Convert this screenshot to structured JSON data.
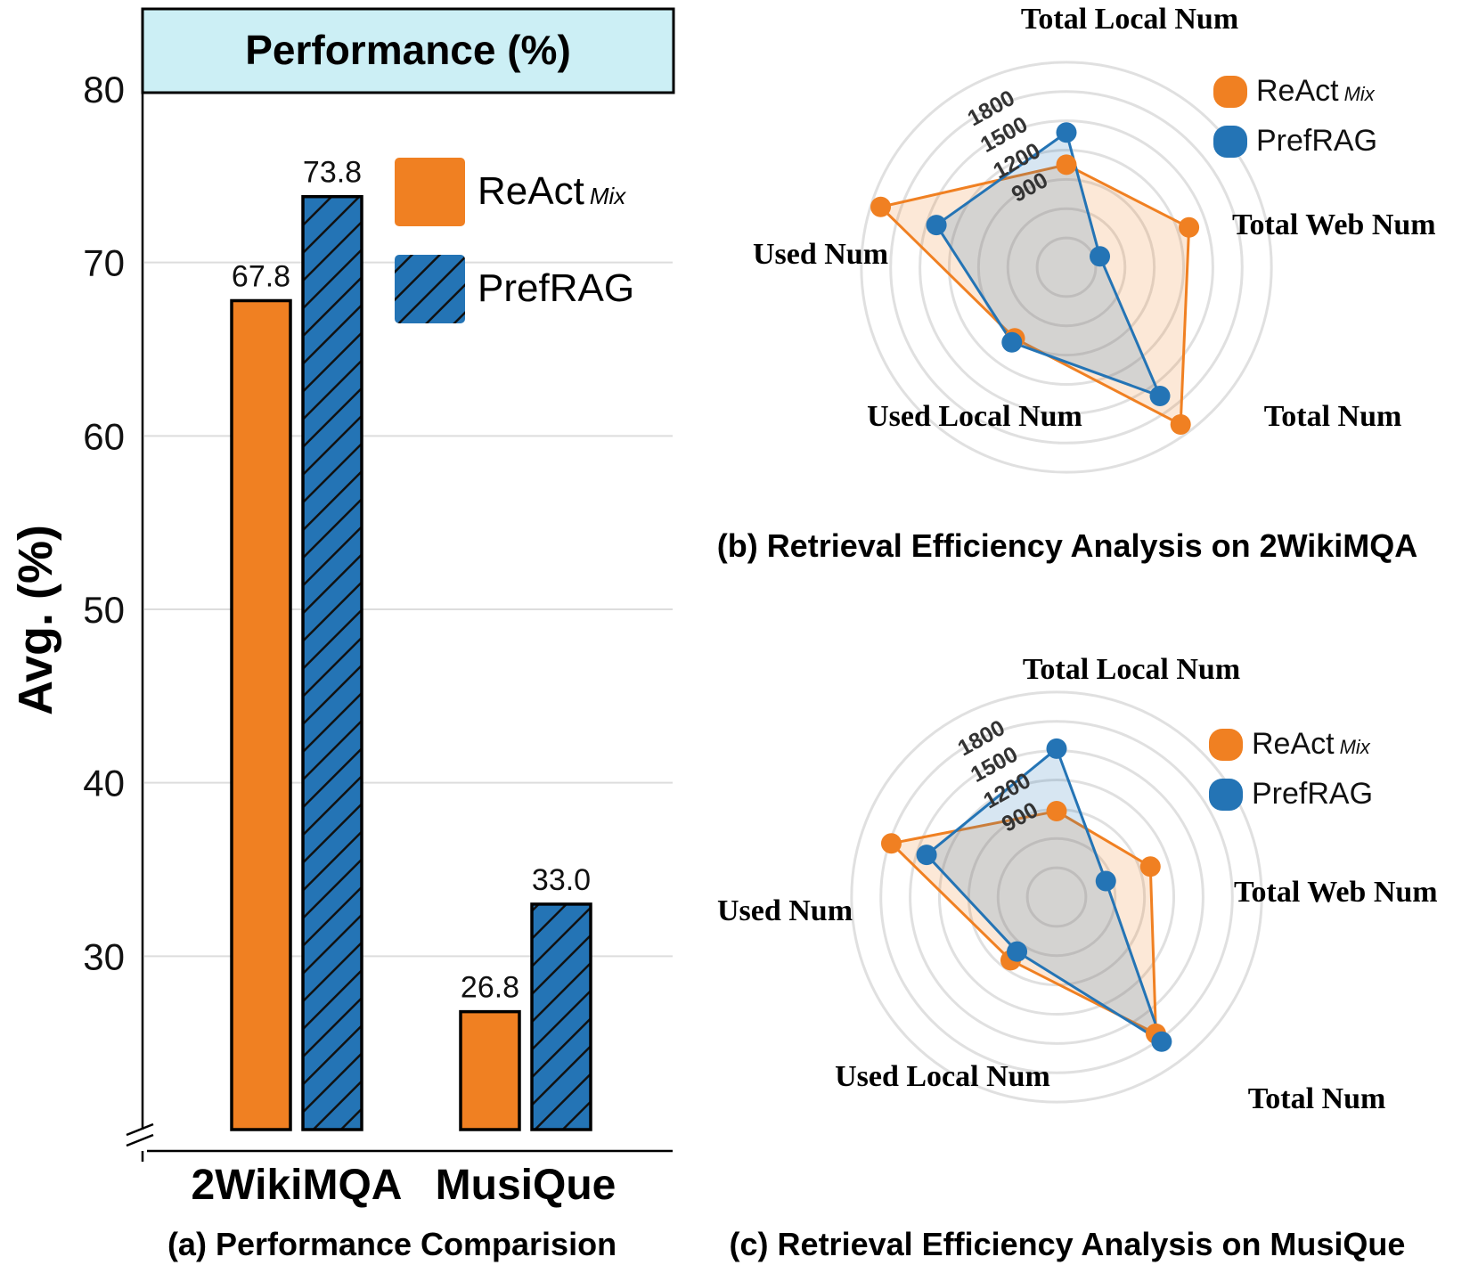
{
  "colors": {
    "react": "#F08022",
    "prefrag": "#2474B5",
    "title_box_bg": "#CCEFF5",
    "grid": "#DDDDDD",
    "ring": "#E0E0E0"
  },
  "chart_data": [
    {
      "type": "bar",
      "title": "Performance (%)",
      "caption": "(a) Performance Comparision",
      "ylabel": "Avg. (%)",
      "ylim": [
        20,
        80
      ],
      "yticks": [
        30,
        40,
        50,
        60,
        70,
        80
      ],
      "axis_break": true,
      "grid": true,
      "legend_position": "top-right",
      "categories": [
        "2WikiMQA",
        "MusiQue"
      ],
      "series": [
        {
          "name": "ReAct",
          "name_sub": "Mix",
          "values": [
            67.8,
            26.8
          ],
          "color": "#F08022",
          "hatch": false
        },
        {
          "name": "PrefRAG",
          "name_sub": "",
          "values": [
            73.8,
            33.0
          ],
          "color": "#2474B5",
          "hatch": true
        }
      ],
      "data_labels": [
        "67.8",
        "73.8",
        "26.8",
        "33.0"
      ]
    },
    {
      "type": "radar",
      "caption": "(b) Retrieval Efficiency Analysis on 2WikiMQA",
      "axes": [
        "Total Local Num",
        "Total Web Num",
        "Total Num",
        "Used Local Num",
        "Used Num"
      ],
      "rings": [
        900,
        1200,
        1500,
        1800
      ],
      "ring_labels": [
        "900",
        "1200",
        "1500",
        "1800"
      ],
      "legend_position": "top-right",
      "series": [
        {
          "name": "ReAct",
          "name_sub": "Mix",
          "values": [
            1050,
            1320,
            1990,
            900,
            2000
          ],
          "color": "#F08022"
        },
        {
          "name": "PrefRAG",
          "name_sub": "",
          "values": [
            1380,
            360,
            1630,
            950,
            1400
          ],
          "color": "#2474B5"
        }
      ]
    },
    {
      "type": "radar",
      "caption": "(c) Retrieval Efficiency Analysis on MusiQue",
      "axes": [
        "Total Local Num",
        "Total Web Num",
        "Total Num",
        "Used Local Num",
        "Used Num"
      ],
      "rings": [
        900,
        1200,
        1500,
        1800
      ],
      "ring_labels": [
        "900",
        "1200",
        "1500",
        "1800"
      ],
      "legend_position": "top-right",
      "series": [
        {
          "name": "ReAct",
          "name_sub": "Mix",
          "values": [
            880,
            1010,
            1730,
            800,
            1780
          ],
          "color": "#F08022"
        },
        {
          "name": "PrefRAG",
          "name_sub": "",
          "values": [
            1520,
            530,
            1830,
            690,
            1400
          ],
          "color": "#2474B5"
        }
      ]
    }
  ]
}
